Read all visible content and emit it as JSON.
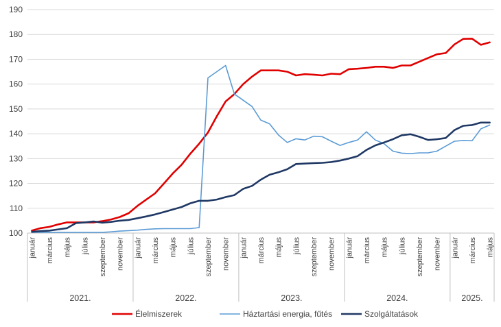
{
  "chart_data": {
    "type": "line",
    "title": "",
    "ylim": [
      100,
      190
    ],
    "yticks": [
      100,
      110,
      120,
      130,
      140,
      150,
      160,
      170,
      180,
      190
    ],
    "grid": "horizontal",
    "legend_position": "bottom",
    "month_labels": [
      "január",
      "március",
      "május",
      "július",
      "szeptember",
      "november"
    ],
    "year_labels": [
      "2021.",
      "2022.",
      "2023.",
      "2024.",
      "2025."
    ],
    "year_months": [
      12,
      12,
      12,
      12,
      5
    ],
    "series": [
      {
        "name": "Élelmiszerek",
        "color": "#e00000",
        "values": [
          101,
          102,
          102.5,
          103.5,
          104.3,
          104.3,
          104.3,
          104.3,
          104.8,
          105.5,
          106.5,
          108,
          111,
          113.5,
          116,
          120,
          124,
          127.5,
          132,
          136,
          140.5,
          147,
          153,
          156,
          160,
          163,
          165.5,
          165.5,
          165.5,
          165,
          163.5,
          164,
          163.8,
          163.5,
          164.2,
          164,
          166,
          166.2,
          166.5,
          167,
          167,
          166.5,
          167.5,
          167.5,
          169,
          170.5,
          172,
          172.5,
          176,
          178.2,
          178.3,
          175.8,
          176.8
        ]
      },
      {
        "name": "Háztartási energia, fűtés",
        "color": "#5b9bd5",
        "values": [
          100.3,
          100.3,
          100.3,
          100.3,
          100.3,
          100.3,
          100.3,
          100.3,
          100.3,
          100.5,
          100.8,
          101,
          101.2,
          101.5,
          101.7,
          101.8,
          101.8,
          101.8,
          101.8,
          102.2,
          162.5,
          165,
          167.5,
          156,
          153.5,
          151,
          145.5,
          144,
          139.5,
          136.5,
          138,
          137.5,
          139,
          138.8,
          137,
          135.3,
          136.5,
          137.5,
          140.8,
          137.5,
          136,
          133,
          132.2,
          132,
          132.3,
          132.3,
          133,
          135,
          137,
          137.3,
          137.2,
          142,
          143.5
        ]
      },
      {
        "name": "Szolgáltatások",
        "color": "#1f3864",
        "values": [
          100.5,
          100.8,
          101,
          101.5,
          102,
          104,
          104.3,
          104.7,
          104.2,
          104.5,
          105,
          105.3,
          106,
          106.7,
          107.5,
          108.5,
          109.5,
          110.5,
          112,
          113,
          113,
          113.5,
          114.5,
          115.3,
          117.8,
          119,
          121.5,
          123.5,
          124.5,
          125.7,
          127.8,
          128,
          128.2,
          128.3,
          128.6,
          129.2,
          130,
          131,
          133.5,
          135.3,
          136.5,
          137.8,
          139.4,
          139.8,
          138.8,
          137.5,
          137.8,
          138.3,
          141.5,
          143.2,
          143.5,
          144.5,
          144.5
        ]
      }
    ]
  }
}
